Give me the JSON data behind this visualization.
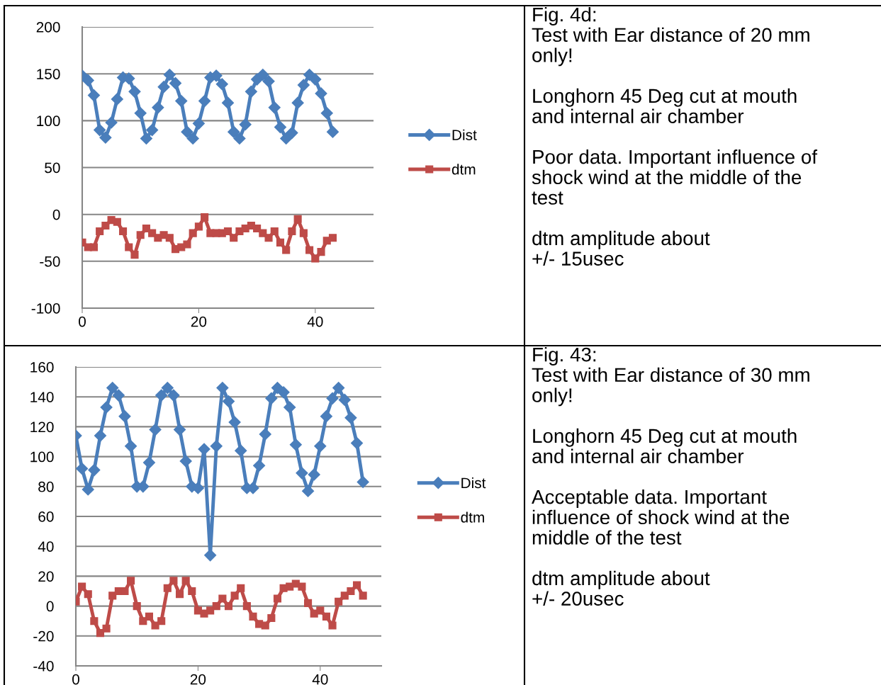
{
  "chart_data": [
    {
      "type": "line",
      "x": [
        0,
        1,
        2,
        3,
        4,
        5,
        6,
        7,
        8,
        9,
        10,
        11,
        12,
        13,
        14,
        15,
        16,
        17,
        18,
        19,
        20,
        21,
        22,
        23,
        24,
        25,
        26,
        27,
        28,
        29,
        30,
        31,
        32,
        33,
        34,
        35,
        36,
        37,
        38,
        39,
        40,
        41,
        42,
        43
      ],
      "series": [
        {
          "name": "Dist",
          "color": "#4a7ebb",
          "marker": "diamond",
          "values": [
            148,
            143,
            127,
            90,
            82,
            98,
            123,
            146,
            145,
            131,
            108,
            81,
            90,
            114,
            136,
            149,
            140,
            121,
            88,
            81,
            97,
            121,
            146,
            148,
            139,
            119,
            88,
            81,
            96,
            131,
            144,
            149,
            142,
            114,
            93,
            81,
            87,
            119,
            138,
            149,
            144,
            129,
            108,
            88
          ]
        },
        {
          "name": "dtm",
          "color": "#be4b48",
          "marker": "square",
          "values": [
            -30,
            -35,
            -35,
            -18,
            -12,
            -6,
            -8,
            -18,
            -35,
            -43,
            -22,
            -15,
            -20,
            -25,
            -22,
            -25,
            -37,
            -35,
            -32,
            -20,
            -13,
            -3,
            -20,
            -20,
            -20,
            -18,
            -25,
            -18,
            -15,
            -12,
            -15,
            -20,
            -25,
            -18,
            -30,
            -38,
            -18,
            -5,
            -20,
            -38,
            -47,
            -40,
            -28,
            -25
          ]
        }
      ],
      "xlim": [
        0,
        50
      ],
      "xticks": [
        0,
        20,
        40
      ],
      "ylim": [
        -100,
        200
      ],
      "yticks": [
        -100,
        -50,
        0,
        50,
        100,
        150,
        200
      ],
      "grid": "y",
      "legend": "right"
    },
    {
      "type": "other",
      "title": "Fig. 4d:",
      "annotations": [
        "Test with Ear distance of 20 mm\nonly!",
        "Longhorn 45 Deg cut at mouth\nand internal air chamber",
        "Poor data. Important influence of\nshock wind at the middle of the\ntest",
        "dtm amplitude about\n+/- 15usec"
      ]
    },
    {
      "type": "line",
      "x": [
        0,
        1,
        2,
        3,
        4,
        5,
        6,
        7,
        8,
        9,
        10,
        11,
        12,
        13,
        14,
        15,
        16,
        17,
        18,
        19,
        20,
        21,
        22,
        23,
        24,
        25,
        26,
        27,
        28,
        29,
        30,
        31,
        32,
        33,
        34,
        35,
        36,
        37,
        38,
        39,
        40,
        41,
        42,
        43,
        44,
        45,
        46,
        47
      ],
      "series": [
        {
          "name": "Dist",
          "color": "#4a7ebb",
          "marker": "diamond",
          "values": [
            114,
            92,
            78,
            91,
            114,
            133,
            146,
            141,
            127,
            107,
            80,
            80,
            96,
            118,
            141,
            146,
            141,
            118,
            97,
            80,
            79,
            105,
            34,
            107,
            146,
            137,
            123,
            104,
            79,
            79,
            94,
            115,
            139,
            146,
            143,
            133,
            108,
            89,
            77,
            88,
            107,
            127,
            139,
            146,
            138,
            126,
            109,
            83
          ]
        },
        {
          "name": "dtm",
          "color": "#be4b48",
          "marker": "square",
          "values": [
            3,
            13,
            8,
            -10,
            -18,
            -15,
            7,
            10,
            10,
            17,
            0,
            -10,
            -7,
            -13,
            -10,
            12,
            17,
            8,
            17,
            10,
            -3,
            -5,
            -3,
            0,
            5,
            0,
            7,
            12,
            0,
            -7,
            -12,
            -13,
            -8,
            5,
            12,
            13,
            15,
            13,
            2,
            -5,
            -3,
            -7,
            -13,
            3,
            7,
            10,
            14,
            7
          ]
        }
      ],
      "xlim": [
        0,
        50
      ],
      "xticks": [
        0,
        20,
        40
      ],
      "ylim": [
        -40,
        160
      ],
      "yticks": [
        -40,
        -20,
        0,
        20,
        40,
        60,
        80,
        100,
        120,
        140,
        160
      ],
      "grid": "y",
      "legend": "right"
    },
    {
      "type": "other",
      "title": "Fig. 43:",
      "annotations": [
        "Test with Ear distance of 30 mm\nonly!",
        "Longhorn 45 Deg cut at mouth\nand internal air chamber",
        "Acceptable data. Important\ninfluence of shock wind at the\nmiddle of the test",
        "dtm amplitude about\n+/- 20usec"
      ]
    }
  ]
}
